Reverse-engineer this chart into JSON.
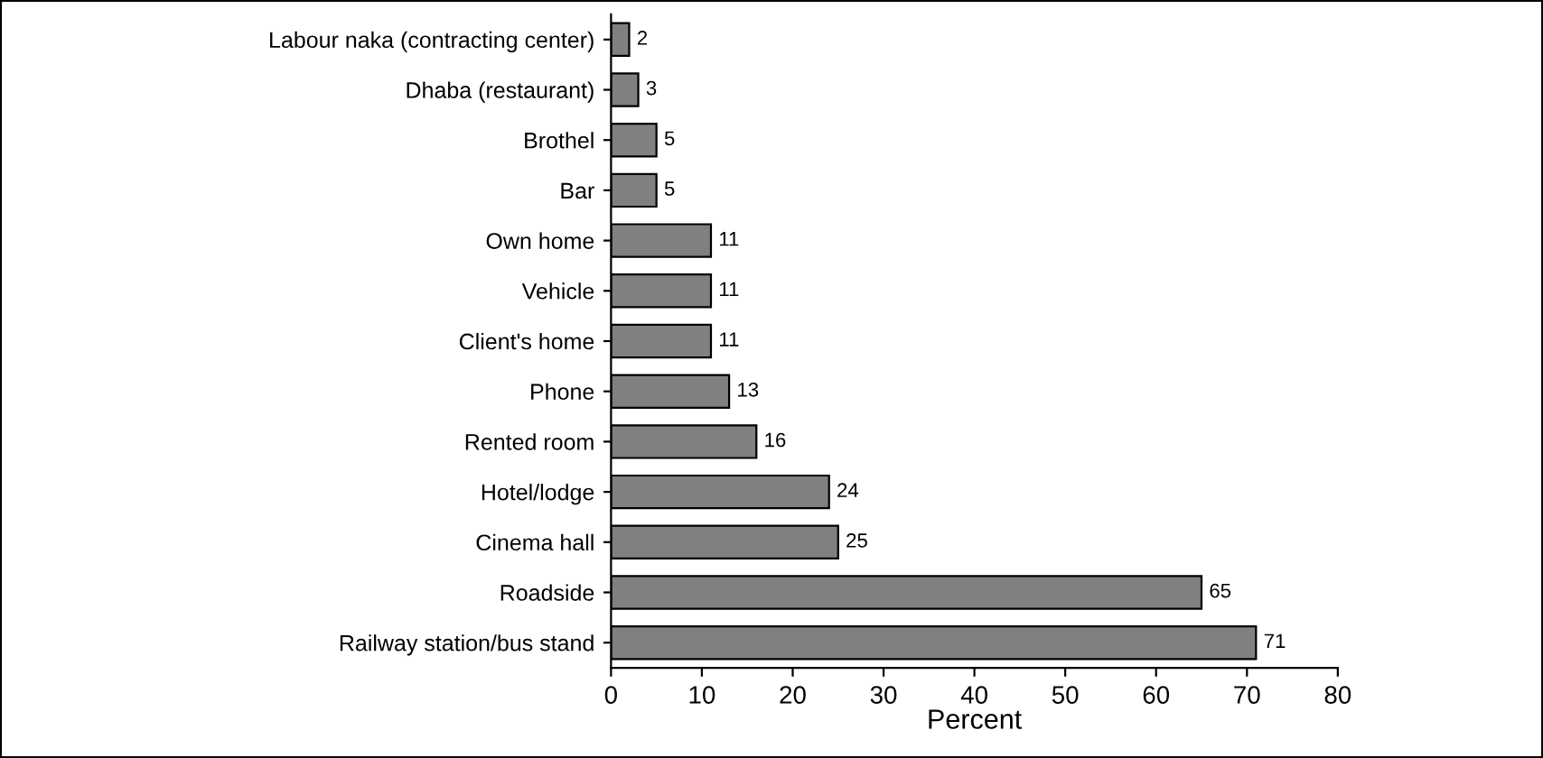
{
  "chart_data": {
    "type": "bar",
    "orientation": "horizontal",
    "xlabel": "Percent",
    "categories": [
      "Labour naka (contracting center)",
      "Dhaba (restaurant)",
      "Brothel",
      "Bar",
      "Own home",
      "Vehicle",
      "Client's home",
      "Phone",
      "Rented room",
      "Hotel/lodge",
      "Cinema hall",
      "Roadside",
      "Railway station/bus stand"
    ],
    "values": [
      2,
      3,
      5,
      5,
      11,
      11,
      11,
      13,
      16,
      24,
      25,
      65,
      71
    ],
    "color": "#808080",
    "data_labels": true,
    "xlim": [
      0,
      80
    ],
    "xticks": [
      0,
      10,
      20,
      30,
      40,
      50,
      60,
      70,
      80
    ],
    "grid": false,
    "legend": false
  }
}
